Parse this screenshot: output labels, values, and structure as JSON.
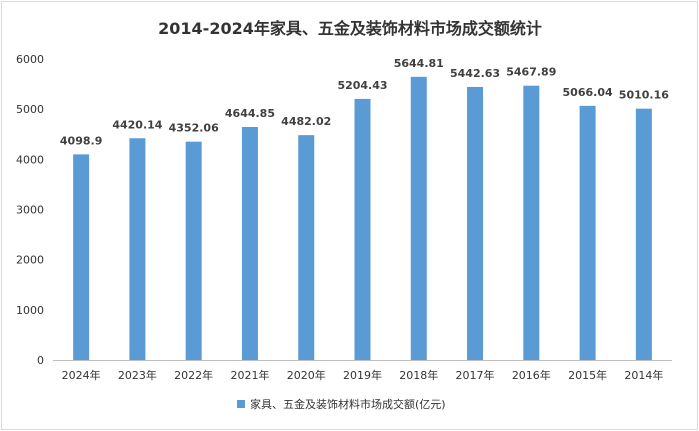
{
  "chart_data": {
    "type": "bar",
    "title": "2014-2024年家具、五金及装饰材料市场成交额统计",
    "xlabel": "",
    "ylabel": "",
    "categories": [
      "2024年",
      "2023年",
      "2022年",
      "2021年",
      "2020年",
      "2019年",
      "2018年",
      "2017年",
      "2016年",
      "2015年",
      "2014年"
    ],
    "series": [
      {
        "name": "家具、五金及装饰材料市场成交额(亿元)",
        "values": [
          4098.9,
          4420.14,
          4352.06,
          4644.85,
          4482.02,
          5204.43,
          5644.81,
          5442.63,
          5467.89,
          5066.04,
          5010.16
        ],
        "color": "#5b9bd5"
      }
    ],
    "ylim": [
      0,
      6000
    ],
    "yticks": [
      0,
      1000,
      2000,
      3000,
      4000,
      5000,
      6000
    ],
    "grid": false,
    "legend_position": "bottom"
  }
}
